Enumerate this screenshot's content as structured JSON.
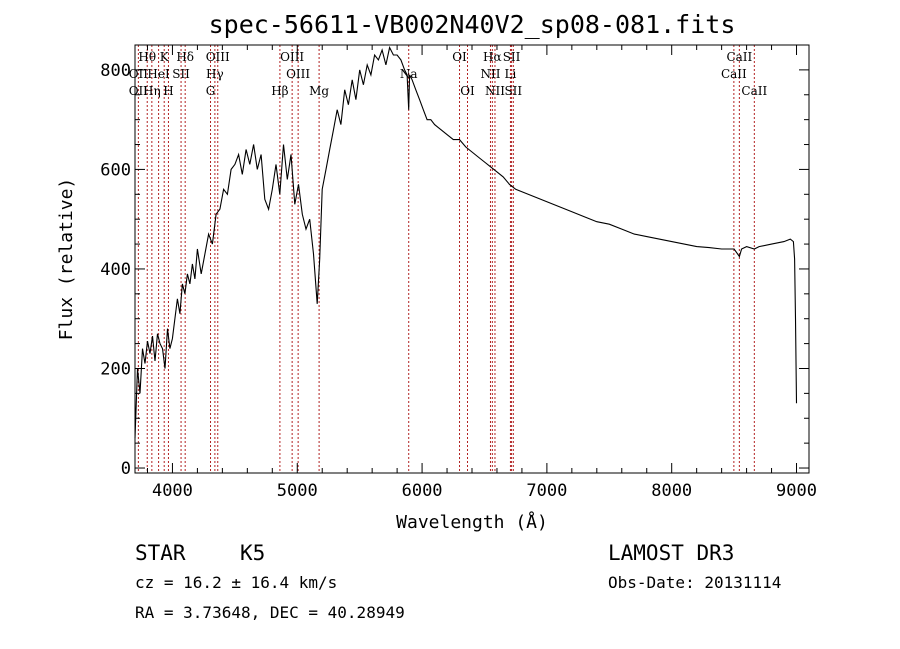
{
  "chart_data": {
    "type": "line",
    "title": "spec-56611-VB002N40V2_sp08-081.fits",
    "xlabel": "Wavelength (Å)",
    "ylabel": "Flux (relative)",
    "xlim": [
      3700,
      9100
    ],
    "ylim": [
      -10,
      850
    ],
    "xticks": [
      4000,
      5000,
      6000,
      7000,
      8000,
      9000
    ],
    "yticks": [
      0,
      200,
      400,
      600,
      800
    ],
    "series": [
      {
        "name": "flux",
        "x": [
          3700,
          3720,
          3740,
          3760,
          3780,
          3800,
          3820,
          3840,
          3860,
          3880,
          3900,
          3920,
          3940,
          3960,
          3980,
          4000,
          4020,
          4040,
          4060,
          4080,
          4100,
          4120,
          4140,
          4160,
          4180,
          4200,
          4230,
          4260,
          4290,
          4320,
          4350,
          4380,
          4410,
          4440,
          4470,
          4500,
          4530,
          4560,
          4590,
          4620,
          4650,
          4680,
          4710,
          4740,
          4770,
          4800,
          4830,
          4860,
          4890,
          4920,
          4950,
          4980,
          5010,
          5040,
          5070,
          5100,
          5130,
          5160,
          5180,
          5200,
          5230,
          5260,
          5290,
          5320,
          5350,
          5380,
          5410,
          5440,
          5470,
          5500,
          5530,
          5560,
          5590,
          5620,
          5650,
          5680,
          5710,
          5740,
          5770,
          5800,
          5830,
          5860,
          5880,
          5893,
          5900,
          5920,
          5950,
          5980,
          6010,
          6040,
          6070,
          6100,
          6150,
          6200,
          6250,
          6300,
          6350,
          6400,
          6450,
          6500,
          6550,
          6600,
          6650,
          6700,
          6750,
          6800,
          6900,
          7000,
          7100,
          7200,
          7300,
          7400,
          7500,
          7600,
          7700,
          7800,
          7900,
          8000,
          8100,
          8200,
          8300,
          8400,
          8500,
          8542,
          8560,
          8600,
          8662,
          8700,
          8800,
          8900,
          8950,
          8975,
          8985,
          8992,
          9000
        ],
        "y": [
          60,
          200,
          150,
          240,
          210,
          255,
          230,
          265,
          215,
          270,
          250,
          240,
          200,
          280,
          240,
          260,
          300,
          340,
          310,
          370,
          350,
          390,
          370,
          410,
          380,
          440,
          390,
          430,
          470,
          450,
          510,
          520,
          560,
          550,
          600,
          610,
          630,
          590,
          640,
          610,
          650,
          600,
          630,
          540,
          520,
          560,
          610,
          550,
          650,
          580,
          630,
          530,
          570,
          510,
          480,
          500,
          430,
          330,
          420,
          560,
          600,
          640,
          680,
          720,
          690,
          760,
          730,
          780,
          740,
          800,
          770,
          810,
          790,
          830,
          820,
          840,
          810,
          845,
          830,
          830,
          820,
          800,
          790,
          720,
          790,
          780,
          760,
          740,
          720,
          700,
          700,
          690,
          680,
          670,
          660,
          660,
          645,
          635,
          625,
          615,
          605,
          595,
          585,
          570,
          560,
          555,
          545,
          535,
          525,
          515,
          505,
          495,
          490,
          480,
          470,
          465,
          460,
          455,
          450,
          445,
          443,
          440,
          440,
          425,
          440,
          445,
          440,
          445,
          450,
          455,
          460,
          455,
          420,
          300,
          130
        ]
      }
    ],
    "spectral_lines": {
      "rows": [
        [
          {
            "label": "Hθ",
            "x": 3798
          },
          {
            "label": "K",
            "x": 3934
          },
          {
            "label": "Hδ",
            "x": 4102
          },
          {
            "label": "OIII",
            "x": 4363
          },
          {
            "label": "OIII",
            "x": 4959
          },
          {
            "label": "OI",
            "x": 6300
          },
          {
            "label": "Hα",
            "x": 6563
          },
          {
            "label": "SII",
            "x": 6717
          },
          {
            "label": "CaII",
            "x": 8542
          }
        ],
        [
          {
            "label": "OII",
            "x": 3727
          },
          {
            "label": "HeI",
            "x": 3889
          },
          {
            "label": "SII",
            "x": 4069
          },
          {
            "label": "Hγ",
            "x": 4340
          },
          {
            "label": "OIII",
            "x": 5007
          },
          {
            "label": "Na",
            "x": 5893
          },
          {
            "label": "NII",
            "x": 6548
          },
          {
            "label": "Li",
            "x": 6708
          },
          {
            "label": "CaII",
            "x": 8498
          }
        ],
        [
          {
            "label": "OII",
            "x": 3727
          },
          {
            "label": "Hη",
            "x": 3835
          },
          {
            "label": "H",
            "x": 3968
          },
          {
            "label": "G",
            "x": 4305
          },
          {
            "label": "Hβ",
            "x": 4861
          },
          {
            "label": "Mg",
            "x": 5175
          },
          {
            "label": "OI",
            "x": 6364
          },
          {
            "label": "NII",
            "x": 6584
          },
          {
            "label": "SII",
            "x": 6731
          },
          {
            "label": "CaII",
            "x": 8662
          }
        ]
      ]
    }
  },
  "info": {
    "object_class": "STAR",
    "subclass": "K5",
    "survey": "LAMOST DR3",
    "redshift": "cz = 16.2 ± 16.4 km/s",
    "obs_date": "Obs-Date: 20131114",
    "coords": "RA =   3.73648, DEC =  40.28949"
  }
}
